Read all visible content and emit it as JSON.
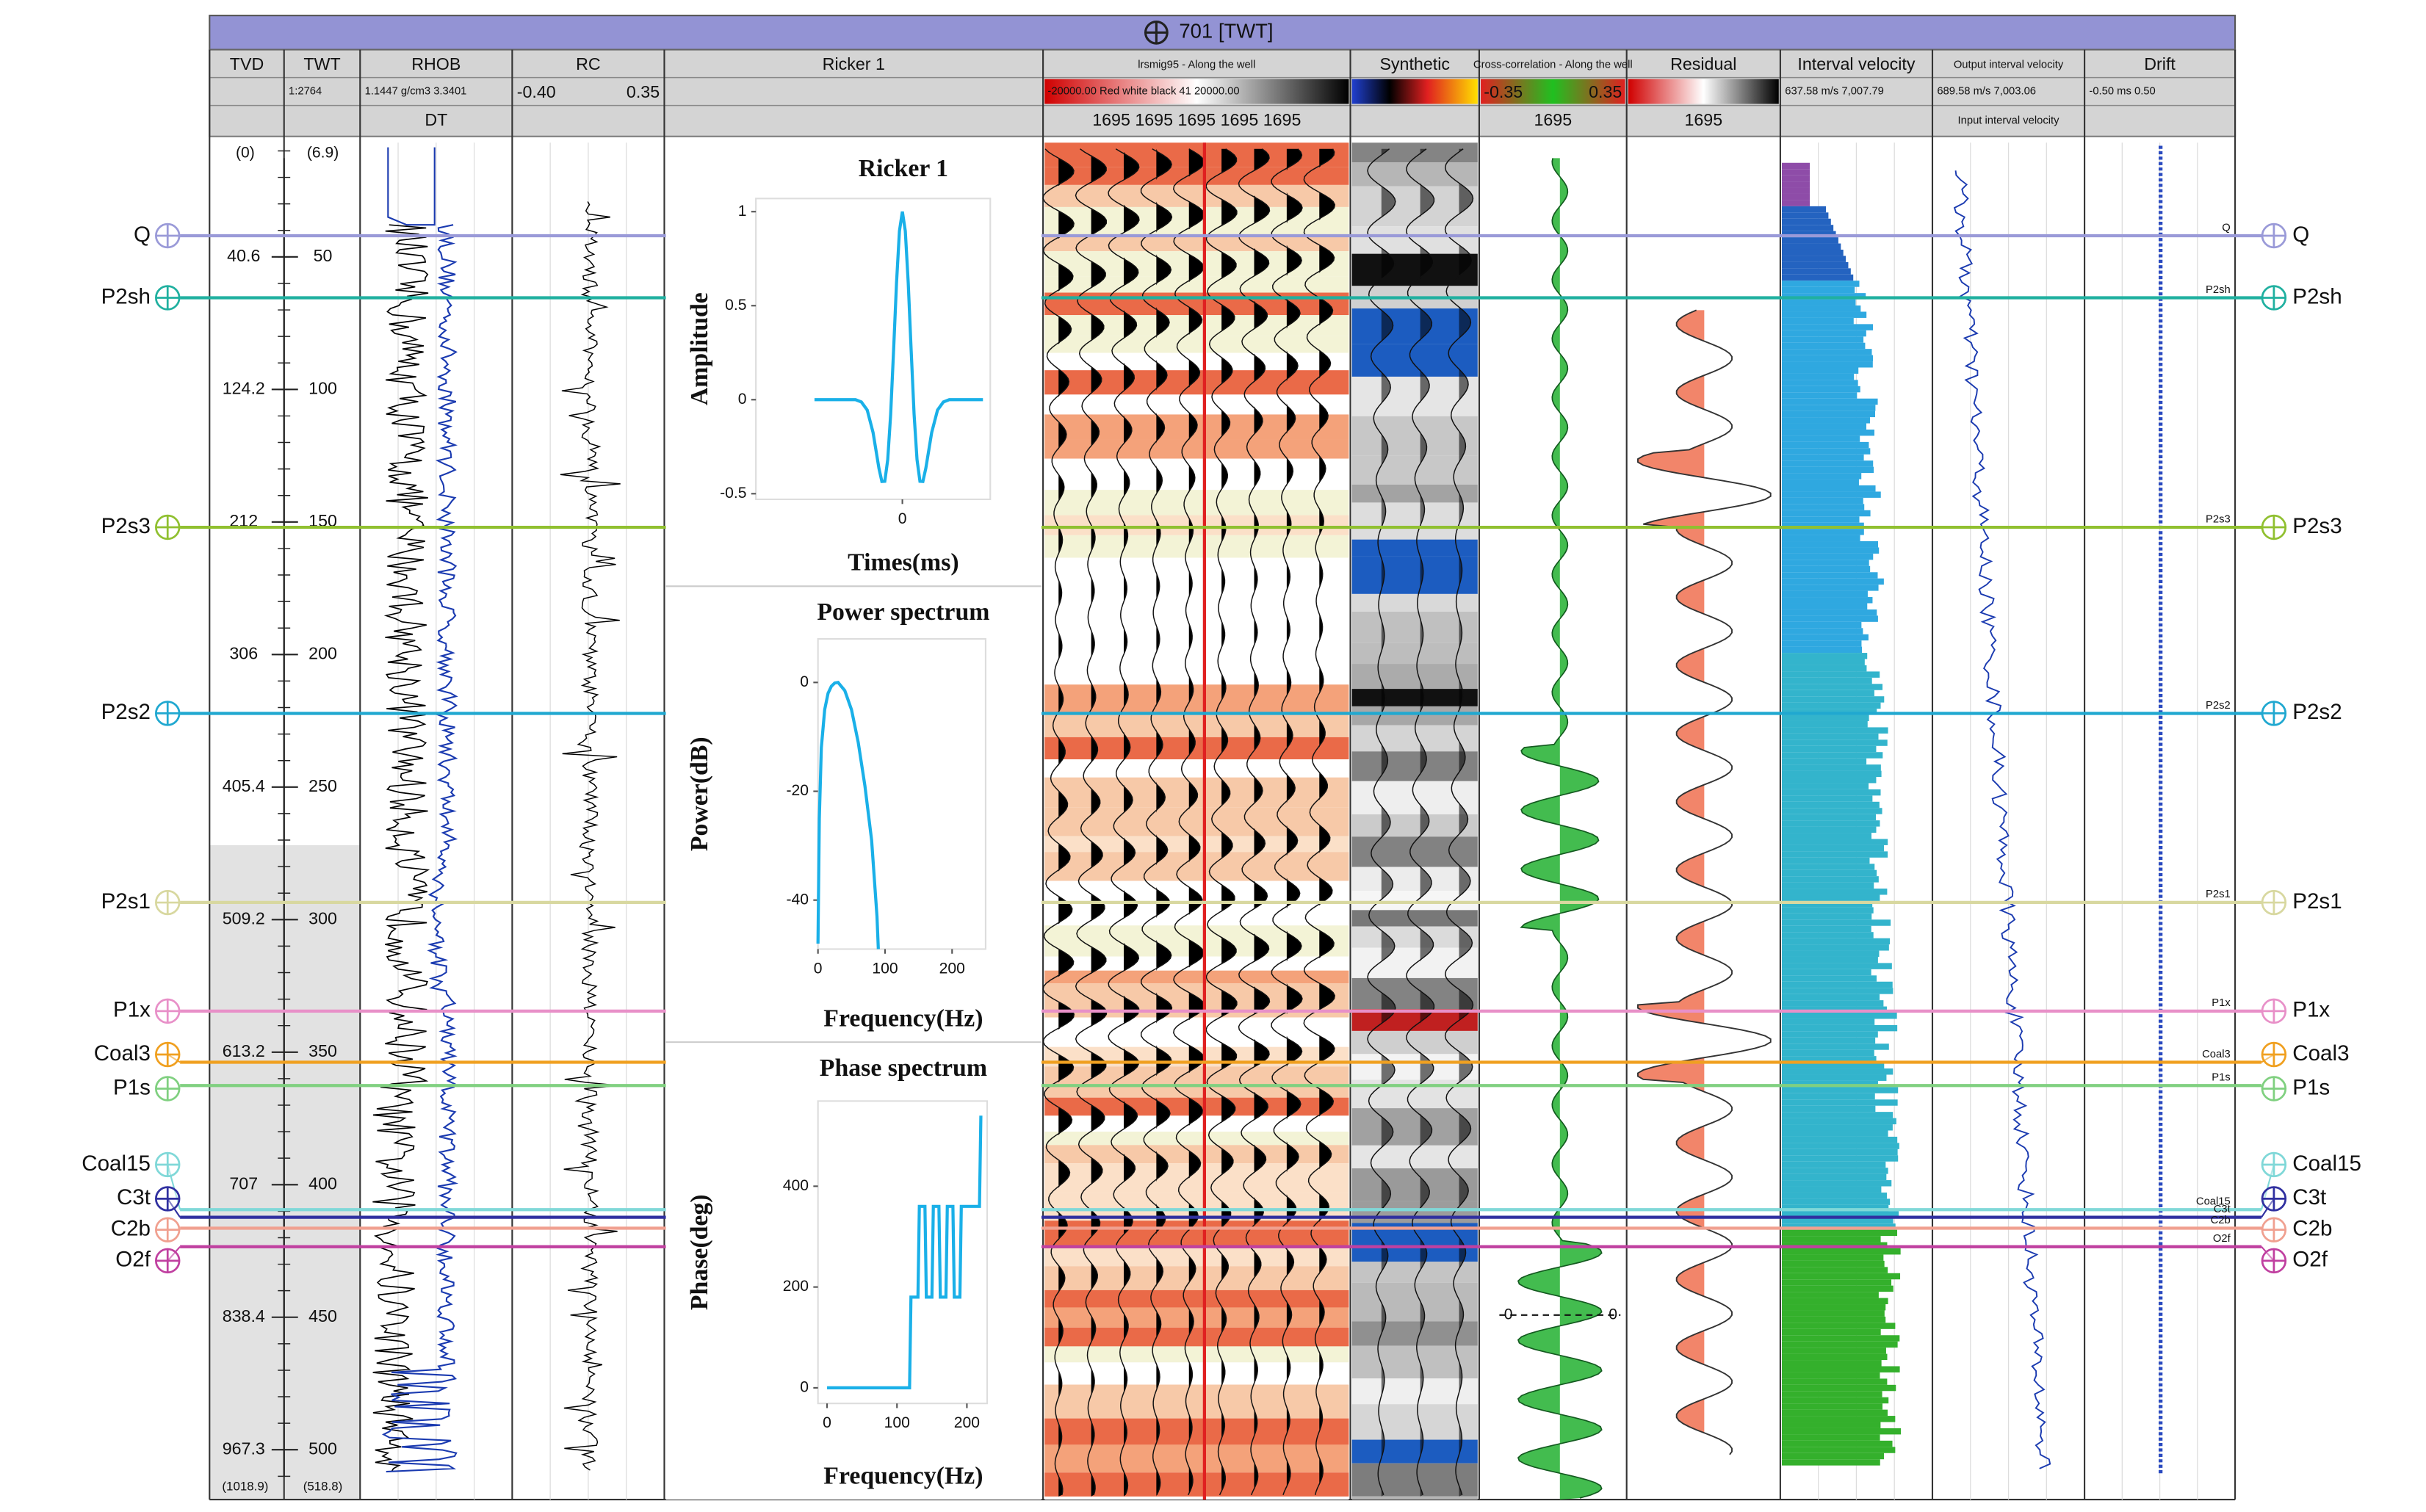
{
  "header": {
    "title": "701 [TWT]"
  },
  "columns": [
    {
      "name": "TVD"
    },
    {
      "name": "TWT",
      "scale": "1:2764"
    },
    {
      "name": "RHOB",
      "scale": "1.1447 g/cm3 3.3401",
      "sub": "DT"
    },
    {
      "name": "RC",
      "scale_min": "-0.40",
      "scale_max": "0.35"
    },
    {
      "name": "Ricker 1"
    },
    {
      "name": "lrsmig95 - Along the well",
      "scale": "-20000.00 Red white black 41 20000.00",
      "sub": "1695 1695 1695 1695 1695"
    },
    {
      "name": "Synthetic"
    },
    {
      "name": "Cross-correlation - Along the well",
      "scale_min": "-0.35",
      "scale_max": "0.35",
      "sub": "1695"
    },
    {
      "name": "Residual",
      "sub": "1695"
    },
    {
      "name": "Interval velocity",
      "scale": "637.58 m/s 7,007.79"
    },
    {
      "name": "Output interval velocity",
      "scale": "689.58 m/s 7,003.06",
      "sub": "Input interval velocity"
    },
    {
      "name": "Drift",
      "scale": "-0.50 ms 0.50"
    }
  ],
  "depth_axis": {
    "twt_lim": [
      6.9,
      518.8
    ],
    "twt_top_label": "(6.9)",
    "twt_bottom_label": "(518.8)",
    "tvd_top_label": "(0)",
    "tvd_bottom_label": "(1018.9)",
    "twt_ticks": [
      50,
      100,
      150,
      200,
      250,
      300,
      350,
      400,
      450,
      500
    ],
    "tvd_labels": [
      40.6,
      124.2,
      212,
      306,
      405.4,
      509.2,
      613.2,
      707,
      838.4,
      967.3
    ]
  },
  "horizons": [
    {
      "name": "Q",
      "twt": 42.0,
      "color": "#9a9ad8"
    },
    {
      "name": "P2sh",
      "twt": 65.4,
      "color": "#20b0a0"
    },
    {
      "name": "P2s3",
      "twt": 152.0,
      "color": "#90c030"
    },
    {
      "name": "P2s2",
      "twt": 222.2,
      "color": "#20a8d0"
    },
    {
      "name": "P2s1",
      "twt": 293.5,
      "color": "#d8d8a0"
    },
    {
      "name": "P1x",
      "twt": 334.5,
      "color": "#e890c8"
    },
    {
      "name": "Coal3",
      "twt": 353.8,
      "color": "#f0a020"
    },
    {
      "name": "P1s",
      "twt": 362.6,
      "color": "#80d080"
    },
    {
      "name": "Coal15",
      "twt": 409.4,
      "color": "#80d8d8"
    },
    {
      "name": "C3t",
      "twt": 412.3,
      "color": "#3030a0"
    },
    {
      "name": "C2b",
      "twt": 416.4,
      "color": "#f0a090"
    },
    {
      "name": "O2f",
      "twt": 423.4,
      "color": "#c040a0"
    }
  ],
  "correlation_zero_labels": [
    0,
    0
  ],
  "chart_data": [
    {
      "type": "line",
      "title": "Ricker 1",
      "x_label": "Times(ms)",
      "y_label": "Amplitude",
      "color": "#1ab0e8",
      "x": [
        -60,
        -32,
        -28,
        -24,
        -20,
        -16,
        -14,
        -12,
        -10,
        -8,
        -6,
        -4,
        -2,
        0,
        2,
        4,
        6,
        8,
        10,
        12,
        14,
        16,
        20,
        24,
        28,
        32,
        55
      ],
      "values": [
        0,
        0,
        -0.012,
        -0.055,
        -0.175,
        -0.365,
        -0.435,
        -0.434,
        -0.319,
        -0.078,
        0.262,
        0.621,
        0.897,
        1,
        0.897,
        0.621,
        0.262,
        -0.078,
        -0.319,
        -0.434,
        -0.435,
        -0.365,
        -0.175,
        -0.055,
        -0.012,
        0,
        0
      ],
      "xlim": [
        -100,
        60
      ],
      "xticks": [
        0
      ],
      "ylim": [
        -0.53,
        1.07
      ],
      "yticks": [
        -0.5,
        0,
        0.5,
        1
      ]
    },
    {
      "type": "line",
      "title": "Power spectrum",
      "x_label": "Frequency(Hz)",
      "y_label": "Power(dB)",
      "color": "#1ab0e8",
      "x": [
        0,
        2,
        5,
        10,
        15,
        20,
        25,
        30,
        40,
        50,
        60,
        70,
        80,
        88,
        90
      ],
      "values": [
        -48,
        -25,
        -12,
        -5,
        -2,
        -0.7,
        -0.1,
        0,
        -1.5,
        -5,
        -11,
        -19,
        -29,
        -43,
        -49
      ],
      "xlim": [
        0,
        250
      ],
      "xticks": [
        0,
        100,
        200
      ],
      "ylim": [
        -49,
        8
      ],
      "yticks": [
        0,
        -20,
        -40
      ]
    },
    {
      "type": "line",
      "title": "Phase spectrum",
      "x_label": "Frequency(Hz)",
      "y_label": "Phase(deg)",
      "color": "#1ab0e8",
      "x": [
        0,
        118,
        120,
        130,
        132,
        140,
        142,
        150,
        152,
        160,
        162,
        170,
        172,
        180,
        182,
        190,
        192,
        200,
        218,
        220
      ],
      "values": [
        0,
        0,
        180,
        180,
        360,
        360,
        180,
        180,
        360,
        360,
        180,
        180,
        360,
        360,
        180,
        180,
        360,
        360,
        360,
        540
      ],
      "xlim": [
        -13,
        229
      ],
      "xticks": [
        0,
        100,
        200
      ],
      "ylim": [
        -31,
        569
      ],
      "yticks": [
        0,
        200,
        400
      ]
    }
  ]
}
